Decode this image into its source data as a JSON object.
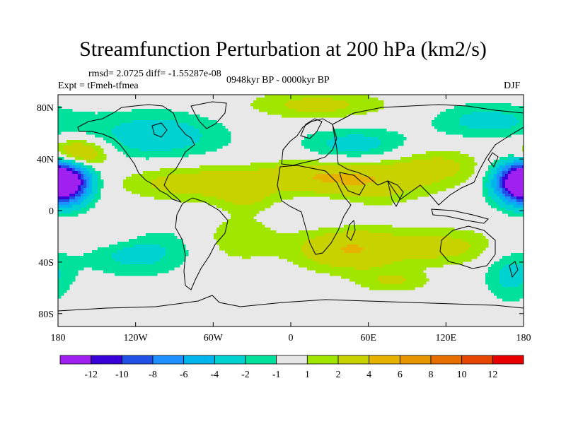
{
  "title": "Streamfunction Perturbation at 200 hPa (km2/s)",
  "stats": "rmsd= 2.0725 diff= -1.55287e-08",
  "experiment": "Expt = tFmeh-tfmea",
  "period": "0948kyr BP - 0000kyr BP",
  "season": "DJF",
  "map": {
    "projection": "cylindrical equidistant",
    "lon_range": [
      -180,
      180
    ],
    "lat_range": [
      -90,
      90
    ],
    "x_ticks": [
      {
        "lon": -180,
        "label": "180"
      },
      {
        "lon": -120,
        "label": "120W"
      },
      {
        "lon": -60,
        "label": "60W"
      },
      {
        "lon": 0,
        "label": "0"
      },
      {
        "lon": 60,
        "label": "60E"
      },
      {
        "lon": 120,
        "label": "120E"
      },
      {
        "lon": 180,
        "label": "180"
      }
    ],
    "y_ticks": [
      {
        "lat": 80,
        "label": "80N"
      },
      {
        "lat": 40,
        "label": "40N"
      },
      {
        "lat": 0,
        "label": "0"
      },
      {
        "lat": -40,
        "label": "40S"
      },
      {
        "lat": -80,
        "label": "80S"
      }
    ],
    "background_color": "#e8e8e8",
    "anomaly_centers": [
      {
        "lon": -175,
        "lat": 22,
        "amp": -11,
        "rx": 14,
        "ry": 11
      },
      {
        "lon": 178,
        "lat": 22,
        "amp": -11,
        "rx": 14,
        "ry": 11
      },
      {
        "lon": -165,
        "lat": 44,
        "amp": 5.5,
        "rx": 16,
        "ry": 8
      },
      {
        "lon": -105,
        "lat": 58,
        "amp": -3,
        "rx": 40,
        "ry": 14
      },
      {
        "lon": -75,
        "lat": 22,
        "amp": 3,
        "rx": 40,
        "ry": 10
      },
      {
        "lon": -35,
        "lat": 12,
        "amp": 2,
        "rx": 15,
        "ry": 9
      },
      {
        "lon": 5,
        "lat": 28,
        "amp": 2,
        "rx": 25,
        "ry": 8
      },
      {
        "lon": 55,
        "lat": 24,
        "amp": 4,
        "rx": 35,
        "ry": 12
      },
      {
        "lon": 50,
        "lat": 50,
        "amp": -3,
        "rx": 30,
        "ry": 10
      },
      {
        "lon": 20,
        "lat": 82,
        "amp": 2.5,
        "rx": 40,
        "ry": 8
      },
      {
        "lon": 150,
        "lat": 70,
        "amp": -2.5,
        "rx": 30,
        "ry": 10
      },
      {
        "lon": 115,
        "lat": 35,
        "amp": 2.2,
        "rx": 25,
        "ry": 10
      },
      {
        "lon": -140,
        "lat": -20,
        "amp": 2,
        "rx": 25,
        "ry": 8
      },
      {
        "lon": -120,
        "lat": -30,
        "amp": -3,
        "rx": 30,
        "ry": 14
      },
      {
        "lon": -40,
        "lat": -22,
        "amp": 2,
        "rx": 20,
        "ry": 12
      },
      {
        "lon": 45,
        "lat": -30,
        "amp": 4,
        "rx": 30,
        "ry": 12
      },
      {
        "lon": 120,
        "lat": -28,
        "amp": 2.5,
        "rx": 30,
        "ry": 10
      },
      {
        "lon": 30,
        "lat": 0,
        "amp": -1.5,
        "rx": 15,
        "ry": 8
      },
      {
        "lon": 170,
        "lat": -50,
        "amp": -2.5,
        "rx": 15,
        "ry": 15
      },
      {
        "lon": 80,
        "lat": -55,
        "amp": 2,
        "rx": 20,
        "ry": 6
      }
    ]
  },
  "colorbar": {
    "levels": [
      "-12",
      "-10",
      "-8",
      "-6",
      "-4",
      "-2",
      "-1",
      "1",
      "2",
      "4",
      "6",
      "8",
      "10",
      "12"
    ],
    "colors": [
      "#a020f0",
      "#3a00d8",
      "#2050e6",
      "#1e90ff",
      "#00b4ec",
      "#00d2d2",
      "#00e29c",
      "#e6e6e6",
      "#a0e600",
      "#c8d200",
      "#e6b400",
      "#e69600",
      "#e66e00",
      "#e64600",
      "#e60000"
    ]
  }
}
